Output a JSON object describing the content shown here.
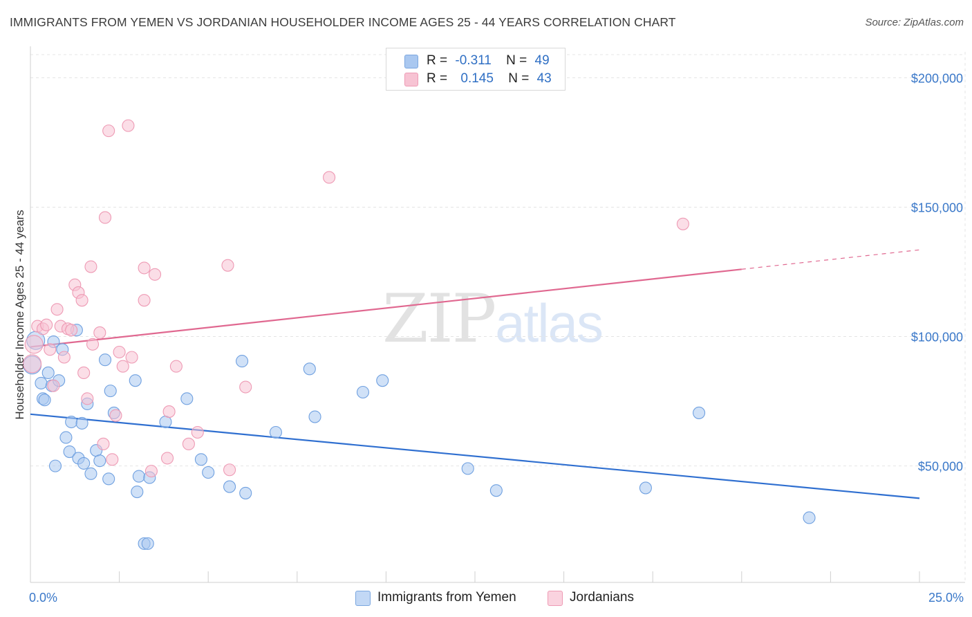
{
  "title": "IMMIGRANTS FROM YEMEN VS JORDANIAN HOUSEHOLDER INCOME AGES 25 - 44 YEARS CORRELATION CHART",
  "source": "Source: ZipAtlas.com",
  "watermark": {
    "zip": "ZIP",
    "atlas": "atlas"
  },
  "legend_top": {
    "rows": [
      {
        "r_label": "R =",
        "r_value": "-0.311",
        "n_label": "N =",
        "n_value": "49",
        "color": "#aac8f0"
      },
      {
        "r_label": "R =",
        "r_value": "0.145",
        "n_label": "N =",
        "n_value": "43",
        "color": "#f7b8cb"
      }
    ]
  },
  "chart_data": {
    "type": "scatter",
    "title": "IMMIGRANTS FROM YEMEN VS JORDANIAN HOUSEHOLDER INCOME AGES 25 - 44 YEARS CORRELATION CHART",
    "xlabel": "",
    "ylabel": "Householder Income Ages 25 - 44 years",
    "xlim": [
      0,
      25
    ],
    "ylim": [
      5000,
      210000
    ],
    "x_tick_labels": [
      "0.0%",
      "25.0%"
    ],
    "y_ticks": [
      50000,
      100000,
      150000,
      200000
    ],
    "y_tick_labels": [
      "$50,000",
      "$100,000",
      "$150,000",
      "$200,000"
    ],
    "grid": true,
    "legend_position": "top-center and bottom",
    "series": [
      {
        "name": "Immigrants from Yemen",
        "color": "#6fa0e0",
        "fill": "#aac8f0",
        "line_color": "#2f6fd0",
        "trend": {
          "x0": 0,
          "y0": 70000,
          "x1": 25,
          "y1": 37500,
          "dashed_from": null
        },
        "points": [
          [
            0.05,
            89000
          ],
          [
            0.15,
            98500
          ],
          [
            0.3,
            82000
          ],
          [
            0.35,
            76000
          ],
          [
            0.4,
            75500
          ],
          [
            0.5,
            86000
          ],
          [
            0.6,
            81000
          ],
          [
            0.65,
            98000
          ],
          [
            0.7,
            50000
          ],
          [
            0.8,
            83000
          ],
          [
            0.9,
            95000
          ],
          [
            1.0,
            61000
          ],
          [
            1.1,
            55500
          ],
          [
            1.15,
            67000
          ],
          [
            1.3,
            102500
          ],
          [
            1.35,
            53000
          ],
          [
            1.45,
            66500
          ],
          [
            1.5,
            51000
          ],
          [
            1.6,
            74000
          ],
          [
            1.7,
            47000
          ],
          [
            1.85,
            56000
          ],
          [
            1.95,
            52000
          ],
          [
            2.1,
            91000
          ],
          [
            2.2,
            45000
          ],
          [
            2.25,
            79000
          ],
          [
            2.35,
            70500
          ],
          [
            2.95,
            83000
          ],
          [
            3.0,
            40000
          ],
          [
            3.05,
            46000
          ],
          [
            3.2,
            20000
          ],
          [
            3.3,
            20000
          ],
          [
            3.35,
            45500
          ],
          [
            3.8,
            67000
          ],
          [
            4.4,
            76000
          ],
          [
            4.8,
            52500
          ],
          [
            5.0,
            47500
          ],
          [
            5.6,
            42000
          ],
          [
            5.95,
            90500
          ],
          [
            6.05,
            39500
          ],
          [
            6.9,
            63000
          ],
          [
            7.85,
            87500
          ],
          [
            8.0,
            69000
          ],
          [
            9.35,
            78500
          ],
          [
            9.9,
            83000
          ],
          [
            12.3,
            49000
          ],
          [
            13.1,
            40500
          ],
          [
            17.3,
            41500
          ],
          [
            18.8,
            70500
          ],
          [
            21.9,
            30000
          ]
        ]
      },
      {
        "name": "Jordanians",
        "color": "#ee9ab4",
        "fill": "#f7c3d3",
        "line_color": "#e06890",
        "trend": {
          "x0": 0,
          "y0": 96000,
          "x1": 25,
          "y1": 133500,
          "dashed_from": 20
        },
        "points": [
          [
            0.05,
            89500
          ],
          [
            0.2,
            104000
          ],
          [
            0.35,
            103000
          ],
          [
            0.45,
            104500
          ],
          [
            0.55,
            95000
          ],
          [
            0.65,
            81000
          ],
          [
            0.75,
            110500
          ],
          [
            0.85,
            104000
          ],
          [
            0.95,
            92000
          ],
          [
            1.05,
            103000
          ],
          [
            1.15,
            102500
          ],
          [
            1.25,
            120000
          ],
          [
            1.35,
            117000
          ],
          [
            1.45,
            114000
          ],
          [
            1.5,
            86000
          ],
          [
            1.6,
            76000
          ],
          [
            1.7,
            127000
          ],
          [
            1.75,
            97000
          ],
          [
            1.95,
            101500
          ],
          [
            2.05,
            58500
          ],
          [
            2.1,
            146000
          ],
          [
            2.2,
            179500
          ],
          [
            2.3,
            52500
          ],
          [
            2.4,
            69500
          ],
          [
            2.5,
            94000
          ],
          [
            2.6,
            88500
          ],
          [
            2.75,
            181500
          ],
          [
            2.85,
            92000
          ],
          [
            3.2,
            114000
          ],
          [
            3.2,
            126500
          ],
          [
            3.4,
            48000
          ],
          [
            3.5,
            124000
          ],
          [
            3.85,
            53000
          ],
          [
            3.9,
            71000
          ],
          [
            4.1,
            88500
          ],
          [
            4.45,
            58500
          ],
          [
            4.7,
            63000
          ],
          [
            5.55,
            127500
          ],
          [
            5.6,
            48500
          ],
          [
            6.05,
            80500
          ],
          [
            8.4,
            161500
          ],
          [
            18.35,
            143500
          ],
          [
            0.1,
            97000
          ]
        ]
      }
    ]
  },
  "legend_bottom": [
    {
      "label": "Immigrants from Yemen",
      "color": "#aac8f0"
    },
    {
      "label": "Jordanians",
      "color": "#f7c3d3"
    }
  ]
}
